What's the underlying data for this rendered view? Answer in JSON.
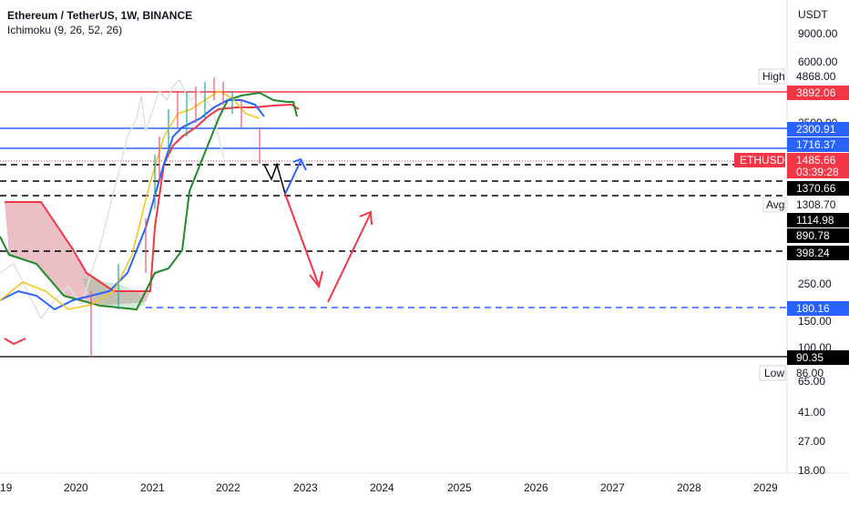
{
  "legend": {
    "title": "Ethereum / TetherUS, 1W, BINANCE",
    "indicator": "Ichimoku (9, 26, 52, 26)"
  },
  "price_axis": {
    "currency": "USDT",
    "ticks": [
      "9000.00",
      "6000.00",
      "2500.00",
      "250.00",
      "150.00",
      "100.00",
      "65.00",
      "41.00",
      "27.00",
      "18.00"
    ]
  },
  "time_axis": {
    "ticks": [
      "19",
      "2020",
      "2021",
      "2022",
      "2023",
      "2024",
      "2025",
      "2026",
      "2027",
      "2028",
      "2029"
    ]
  },
  "price_labels": {
    "high_tag": "High",
    "high_value": "4868.00",
    "red_level": "3892.06",
    "blue_level_1": "2300.91",
    "blue_level_2": "1716.37",
    "symbol": "ETHUSDT",
    "last_price": "1485.66",
    "countdown": "03:39:28",
    "level_1370": "1370.66",
    "avg_tag": "Avg",
    "avg_value": "1308.70",
    "level_1114": "1114.98",
    "level_890": "890.78",
    "level_398": "398.24",
    "blue_dashed_level": "180.16",
    "bottom_level": "90.35",
    "low_tag": "Low",
    "low_value": "86.00"
  },
  "colors": {
    "red_line": "#f23645",
    "blue_line": "#2962ff",
    "green_line": "#1e8a2b",
    "cloud_red": "#d98a95",
    "price_axis_bg": "#ffffff",
    "dark_tag": "#000000"
  }
}
